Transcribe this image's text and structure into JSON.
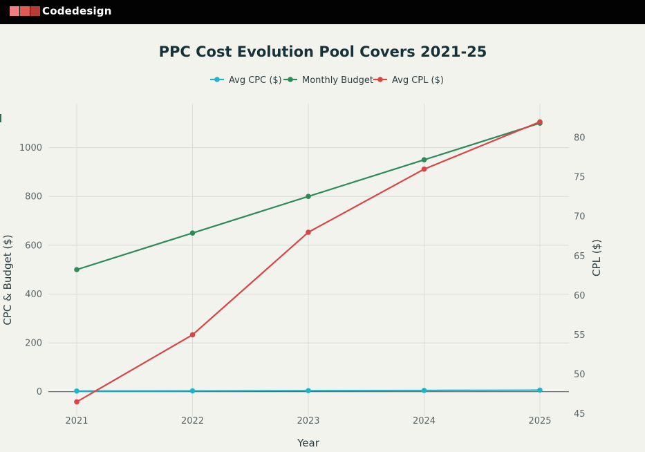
{
  "header": {
    "brand": "Codedesign",
    "logo_colors": [
      "#f08080",
      "#e05a4f",
      "#b83c36",
      "#8b2320"
    ]
  },
  "chart_data": {
    "type": "line",
    "title": "PPC Cost Evolution Pool Covers 2021-25",
    "xlabel": "Year",
    "ylabel_left": "CPC & Budget ($)",
    "ylabel_right": "CPL ($)",
    "categories": [
      "2021",
      "2022",
      "2023",
      "2024",
      "2025"
    ],
    "ylim_left": [
      -100,
      1180
    ],
    "yticks_left": [
      0,
      200,
      400,
      600,
      800,
      1000
    ],
    "ylim_right": [
      44.7,
      84.3
    ],
    "yticks_right": [
      45,
      50,
      55,
      60,
      65,
      70,
      75,
      80
    ],
    "grid": true,
    "legend_position": "top-center",
    "series": [
      {
        "name": "Avg CPC ($)",
        "axis": "left",
        "color": "#1fb5c9",
        "values": [
          2.5,
          3.2,
          4.1,
          5.0,
          6.2
        ]
      },
      {
        "name": "Monthly Budget",
        "axis": "left",
        "color": "#2e8b57",
        "values": [
          500,
          650,
          800,
          950,
          1100
        ]
      },
      {
        "name": "Avg CPL ($)",
        "axis": "right",
        "color": "#d94545",
        "values": [
          46.5,
          55,
          68,
          76,
          82
        ]
      }
    ]
  }
}
